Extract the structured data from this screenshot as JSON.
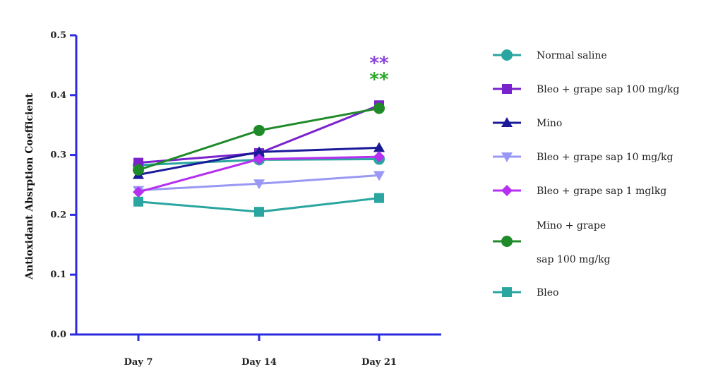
{
  "chart_data": {
    "type": "line",
    "categories": [
      "Day 7",
      "Day 14",
      "Day 21"
    ],
    "ylabel": "Antioxidant Absrption Coefficient",
    "xlabel": "",
    "ylim": [
      0,
      0.5
    ],
    "yticks": [
      "0.0",
      "0.1",
      "0.2",
      "0.3",
      "0.4",
      "0.5"
    ],
    "grid": false,
    "legend_position": "right",
    "series": [
      {
        "name": "Normal saline",
        "color": "#2aa5a0",
        "marker": "circle",
        "values": [
          0.283,
          0.292,
          0.293
        ]
      },
      {
        "name": "Bleo + grape sap 100 mg/kg",
        "color": "#7a22cc",
        "marker": "square",
        "values": [
          0.287,
          0.303,
          0.383
        ]
      },
      {
        "name": "Mino",
        "color": "#1a1a99",
        "marker": "triangle-up",
        "values": [
          0.267,
          0.305,
          0.312
        ]
      },
      {
        "name": "Bleo + grape sap 10 mg/kg",
        "color": "#9999f5",
        "marker": "triangle-down",
        "values": [
          0.241,
          0.252,
          0.266
        ]
      },
      {
        "name": "Bleo + grape sap 1 mglkg",
        "color": "#b530f0",
        "marker": "diamond",
        "values": [
          0.238,
          0.293,
          0.297
        ]
      },
      {
        "name": [
          "Mino + grape",
          "sap 100 mg/kg"
        ],
        "color": "#1f8a2a",
        "marker": "circle",
        "values": [
          0.275,
          0.341,
          0.378
        ]
      },
      {
        "name": "Bleo",
        "color": "#2aa5a0",
        "marker": "square",
        "values": [
          0.222,
          0.205,
          0.228
        ]
      }
    ],
    "annotations": [
      {
        "text": "**",
        "color": "#8a44d8",
        "category": "Day 21",
        "y": 0.455
      },
      {
        "text": "**",
        "color": "#2aa52a",
        "category": "Day 21",
        "y": 0.428
      }
    ]
  }
}
